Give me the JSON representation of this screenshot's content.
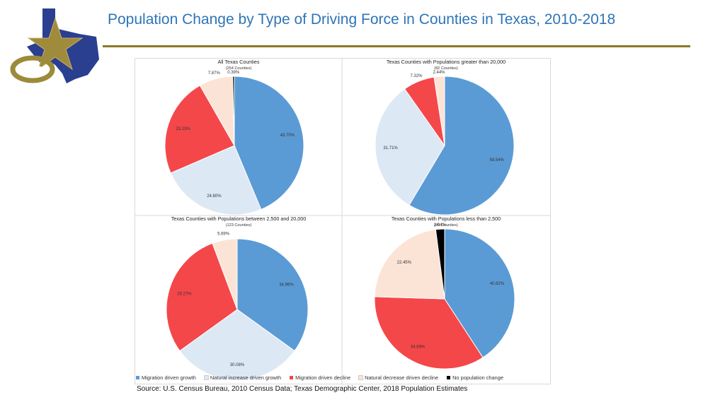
{
  "page": {
    "title": "Population Change by Type of Driving Force in Counties in Texas, 2010-2018",
    "source": "Source: U.S. Census Bureau, 2010 Census Data; Texas Demographic Center, 2018 Population Estimates"
  },
  "colors": {
    "migration_growth": "#5b9bd5",
    "natural_increase_growth": "#dde8f5",
    "migration_decline": "#f4474a",
    "natural_decrease_decline": "#fbe4d6",
    "no_change": "#000000",
    "title": "#2e75b6",
    "rule": "#8a7a2a",
    "logo_blue": "#2a3f8f",
    "logo_gold": "#a08a3c"
  },
  "legend": [
    {
      "key": "migration_growth",
      "label": "Migration driven growth"
    },
    {
      "key": "natural_increase_growth",
      "label": "Natural increase driven growth"
    },
    {
      "key": "migration_decline",
      "label": "Migration driven decline"
    },
    {
      "key": "natural_decrease_decline",
      "label": "Natural decrease driven decline"
    },
    {
      "key": "no_change",
      "label": "No population change"
    }
  ],
  "chart_data": [
    {
      "type": "pie",
      "title": "All Texas Counties",
      "subtitle": "(254 Counties)",
      "slices": [
        {
          "key": "migration_growth",
          "value": 43.7,
          "label": "43.70%"
        },
        {
          "key": "natural_increase_growth",
          "value": 24.8,
          "label": "24.80%"
        },
        {
          "key": "migration_decline",
          "value": 23.23,
          "label": "23.23%"
        },
        {
          "key": "natural_decrease_decline",
          "value": 7.87,
          "label": "7.87%"
        },
        {
          "key": "no_change",
          "value": 0.39,
          "label": "0.39%"
        }
      ]
    },
    {
      "type": "pie",
      "title": "Texas Counties with Populations greater than 20,000",
      "subtitle": "(82 Counties)",
      "slices": [
        {
          "key": "migration_growth",
          "value": 58.54,
          "label": "58.54%"
        },
        {
          "key": "natural_increase_growth",
          "value": 31.71,
          "label": "31.71%"
        },
        {
          "key": "migration_decline",
          "value": 7.32,
          "label": "7.32%"
        },
        {
          "key": "natural_decrease_decline",
          "value": 2.44,
          "label": "2.44%"
        }
      ]
    },
    {
      "type": "pie",
      "title": "Texas Counties with Populations between 2,500 and 20,000",
      "subtitle": "(123 Counties)",
      "slices": [
        {
          "key": "migration_growth",
          "value": 34.96,
          "label": "34.96%"
        },
        {
          "key": "natural_increase_growth",
          "value": 30.08,
          "label": "30.08%"
        },
        {
          "key": "migration_decline",
          "value": 29.27,
          "label": "29.27%"
        },
        {
          "key": "natural_decrease_decline",
          "value": 5.69,
          "label": "5.69%"
        }
      ]
    },
    {
      "type": "pie",
      "title": "Texas Counties with Populations less than 2,500",
      "subtitle": "(49 Counties)",
      "slices": [
        {
          "key": "migration_growth",
          "value": 40.82,
          "label": "40.82%"
        },
        {
          "key": "migration_decline",
          "value": 34.69,
          "label": "34.69%"
        },
        {
          "key": "natural_decrease_decline",
          "value": 22.45,
          "label": "22.45%"
        },
        {
          "key": "no_change",
          "value": 2.04,
          "label": "2.04%"
        }
      ]
    }
  ]
}
